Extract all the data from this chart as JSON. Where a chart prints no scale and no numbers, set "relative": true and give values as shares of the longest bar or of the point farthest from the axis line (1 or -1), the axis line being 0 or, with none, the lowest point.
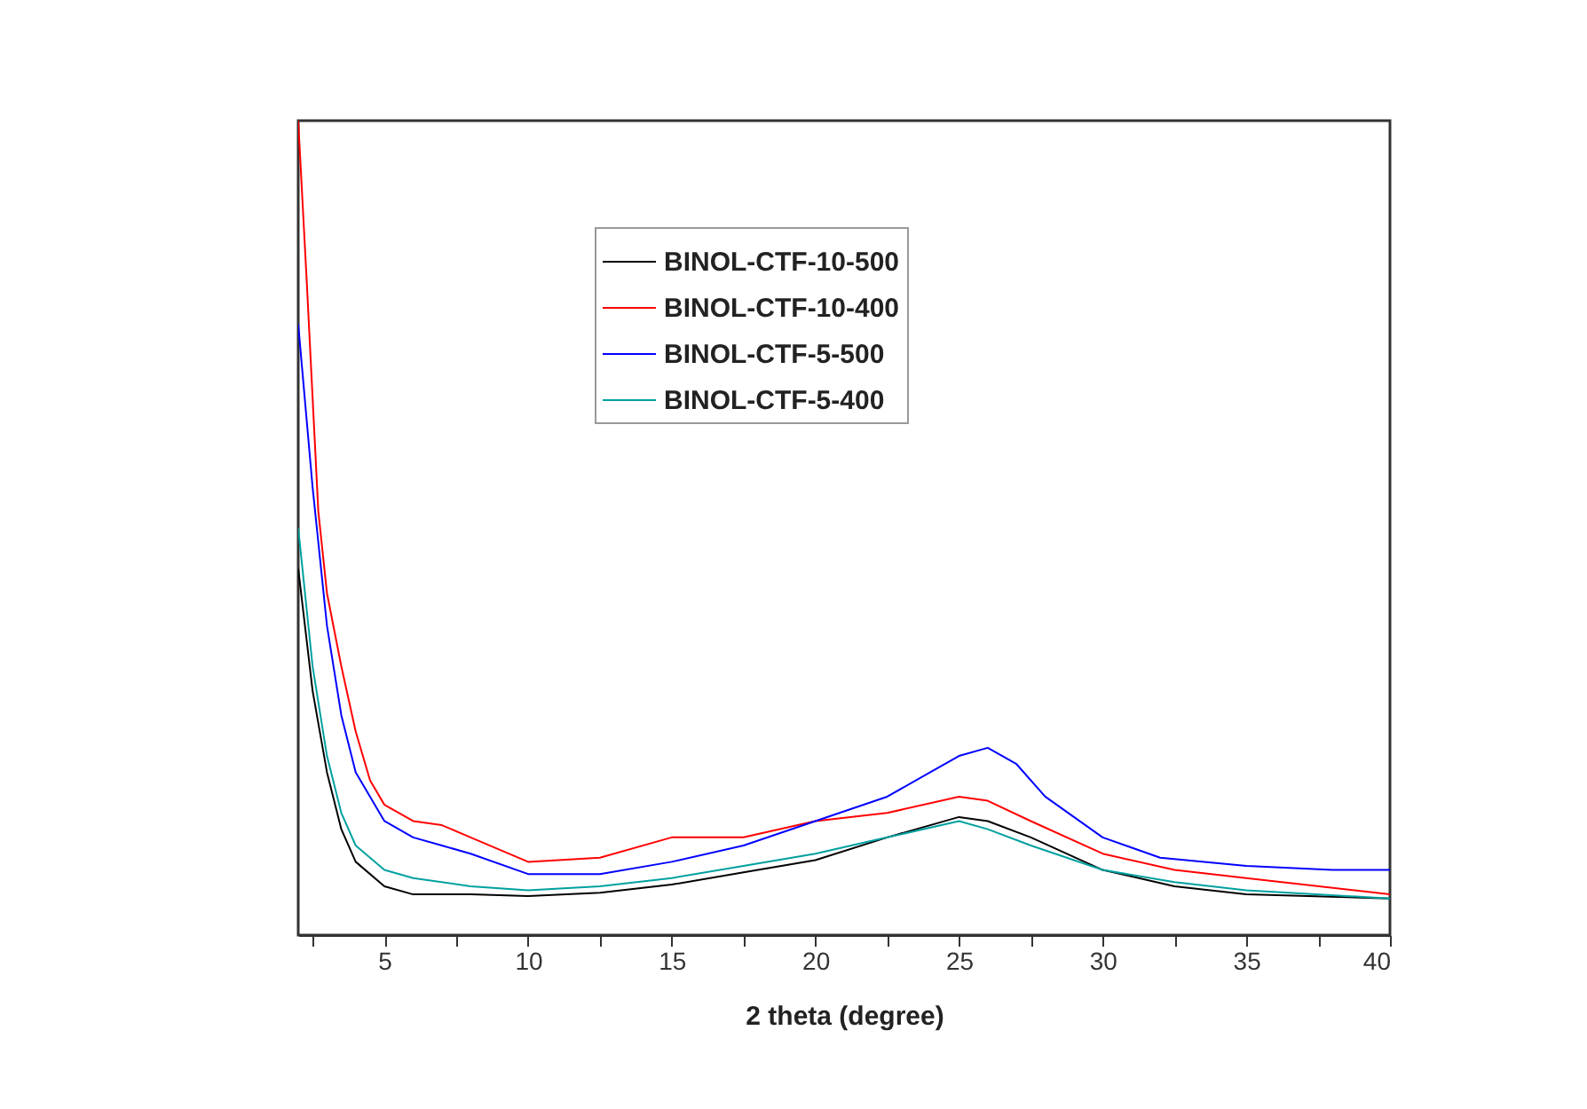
{
  "chart_data": {
    "type": "line",
    "relative": true,
    "xlabel": "2 theta (degree)",
    "xlim": [
      2,
      40
    ],
    "xticks": [
      {
        "value": 2.5,
        "label": null
      },
      5,
      {
        "value": 7.5,
        "label": null
      },
      10,
      {
        "value": 12.5,
        "label": null
      },
      15,
      {
        "value": 17.5,
        "label": null
      },
      20,
      {
        "value": 22.5,
        "label": null
      },
      25,
      {
        "value": 27.5,
        "label": null
      },
      30,
      {
        "value": 32.5,
        "label": null
      },
      35,
      {
        "value": 37.5,
        "label": null
      },
      40
    ],
    "tick_labels": "x",
    "legend": "top",
    "grid": false,
    "marker": "none",
    "line_style": "solid",
    "series": [
      {
        "name": "BINOL-CTF-10-500",
        "color": "#000000",
        "x": [
          2.0,
          2.5,
          3,
          3.5,
          4,
          5,
          6,
          8,
          10,
          12.5,
          15,
          17.5,
          20,
          22.5,
          25,
          26,
          27.5,
          30,
          32.5,
          35,
          40
        ],
        "values": [
          0.45,
          0.3,
          0.2,
          0.13,
          0.09,
          0.06,
          0.05,
          0.05,
          0.048,
          0.052,
          0.062,
          0.077,
          0.092,
          0.12,
          0.145,
          0.14,
          0.12,
          0.08,
          0.06,
          0.05,
          0.045
        ]
      },
      {
        "name": "BINOL-CTF-10-400",
        "color": "#ff0000",
        "x": [
          2.0,
          2.3,
          2.7,
          3,
          3.5,
          4,
          4.5,
          5,
          6,
          7,
          8,
          10,
          12.5,
          15,
          17.5,
          20,
          22.5,
          25,
          26,
          27.5,
          30,
          32.5,
          35,
          40
        ],
        "values": [
          1.0,
          0.8,
          0.52,
          0.42,
          0.33,
          0.25,
          0.19,
          0.16,
          0.14,
          0.135,
          0.12,
          0.09,
          0.095,
          0.12,
          0.12,
          0.14,
          0.15,
          0.17,
          0.165,
          0.14,
          0.1,
          0.08,
          0.07,
          0.05
        ]
      },
      {
        "name": "BINOL-CTF-5-500",
        "color": "#0000ff",
        "x": [
          2.0,
          2.5,
          3,
          3.5,
          4,
          5,
          6,
          7,
          8,
          10,
          12.5,
          15,
          17.5,
          20,
          22.5,
          24,
          25,
          26,
          27,
          28,
          30,
          32,
          35,
          38,
          40
        ],
        "values": [
          0.75,
          0.55,
          0.38,
          0.27,
          0.2,
          0.14,
          0.12,
          0.11,
          0.1,
          0.075,
          0.075,
          0.09,
          0.11,
          0.14,
          0.17,
          0.2,
          0.22,
          0.23,
          0.21,
          0.17,
          0.12,
          0.095,
          0.085,
          0.08,
          0.08
        ]
      },
      {
        "name": "BINOL-CTF-5-400",
        "color": "#00a0a0",
        "x": [
          2.0,
          2.5,
          3,
          3.5,
          4,
          5,
          6,
          8,
          10,
          12.5,
          15,
          17.5,
          20,
          22.5,
          25,
          26,
          27.5,
          30,
          32.5,
          35,
          40
        ],
        "values": [
          0.5,
          0.33,
          0.22,
          0.15,
          0.11,
          0.08,
          0.07,
          0.06,
          0.055,
          0.06,
          0.07,
          0.085,
          0.1,
          0.12,
          0.14,
          0.13,
          0.11,
          0.08,
          0.065,
          0.055,
          0.045
        ]
      }
    ]
  }
}
